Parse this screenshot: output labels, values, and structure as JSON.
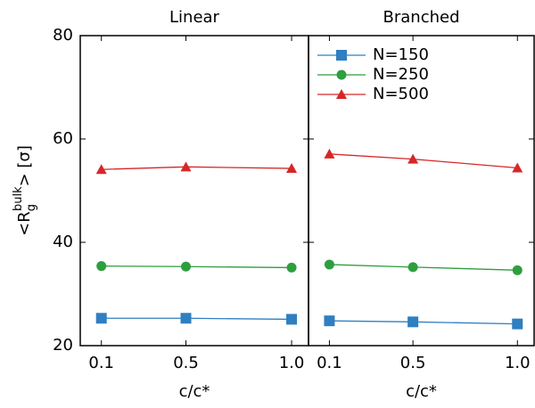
{
  "chart_data": [
    {
      "type": "line",
      "title": "Linear",
      "title_color": "#6aa84f",
      "ylabel": [
        "<R",
        "g",
        "bulk",
        "> [σ]"
      ],
      "xlabel": "c/c*",
      "x": [
        0.1,
        0.5,
        1.0
      ],
      "xlim": [
        0,
        1.08
      ],
      "xticks": [
        0.1,
        0.5,
        {
          "value": 1.0,
          "label": "1.0"
        }
      ],
      "ylim": [
        20,
        80
      ],
      "yticks": [
        20,
        40,
        60,
        80
      ],
      "series": [
        {
          "name": "N=150",
          "color": "#2f7fc1",
          "marker": "square",
          "values": [
            25.3,
            25.3,
            25.1
          ]
        },
        {
          "name": "N=250",
          "color": "#2e9e3e",
          "marker": "circle",
          "values": [
            35.4,
            35.3,
            35.1
          ]
        },
        {
          "name": "N=500",
          "color": "#d62728",
          "marker": "triangle",
          "values": [
            54.1,
            54.6,
            54.3
          ]
        }
      ]
    },
    {
      "type": "line",
      "title": "Branched",
      "title_color": "#4a78c0",
      "xlabel": "c/c*",
      "x": [
        0.1,
        0.5,
        1.0
      ],
      "xlim": [
        0,
        1.08
      ],
      "xticks": [
        0.1,
        0.5,
        {
          "value": 1.0,
          "label": "1.0"
        }
      ],
      "ylim": [
        20,
        80
      ],
      "legend": "upper left",
      "series": [
        {
          "name": "N=150",
          "color": "#2f7fc1",
          "marker": "square",
          "values": [
            24.8,
            24.6,
            24.2
          ]
        },
        {
          "name": "N=250",
          "color": "#2e9e3e",
          "marker": "circle",
          "values": [
            35.7,
            35.2,
            34.6
          ]
        },
        {
          "name": "N=500",
          "color": "#d62728",
          "marker": "triangle",
          "values": [
            57.1,
            56.1,
            54.4
          ]
        }
      ]
    }
  ]
}
